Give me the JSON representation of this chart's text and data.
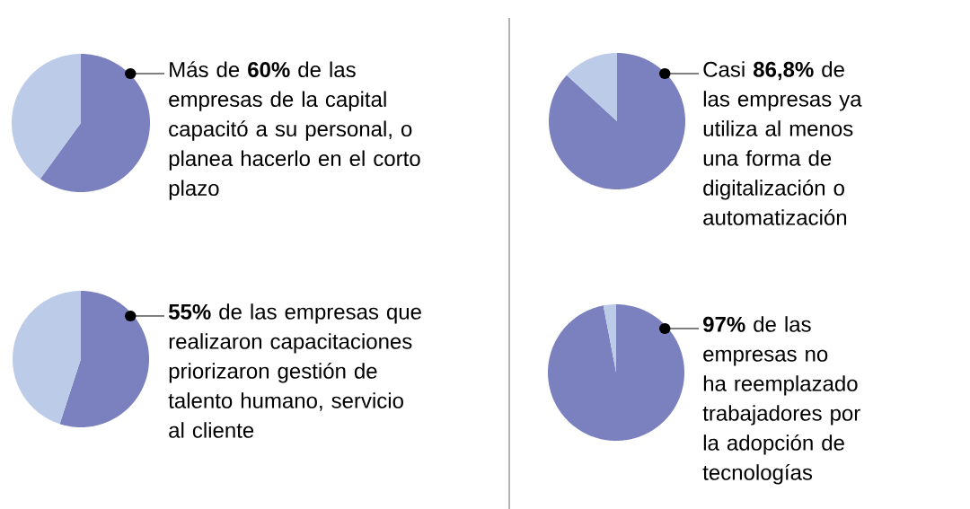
{
  "chart_data": [
    {
      "type": "pie",
      "categories": [
        null,
        null
      ],
      "values": [
        60,
        40
      ],
      "colors": [
        "#7b80bf",
        "#bccbe8"
      ],
      "annotations": [
        "Más de **60%** de las empresas de la capital capacitó a su personal, o planea hacerlo en el corto plazo"
      ]
    },
    {
      "type": "pie",
      "categories": [
        null,
        null
      ],
      "values": [
        86.8,
        13.2
      ],
      "colors": [
        "#7b80bf",
        "#bccbe8"
      ],
      "annotations": [
        "Casi **86,8%** de las empresas ya utiliza al menos una forma de digitalización o automatización"
      ]
    },
    {
      "type": "pie",
      "categories": [
        null,
        null
      ],
      "values": [
        55,
        45
      ],
      "colors": [
        "#7b80bf",
        "#bccbe8"
      ],
      "annotations": [
        "**55%** de las empresas que realizaron capacitaciones priorizaron gestión de talento humano, servicio al cliente"
      ]
    },
    {
      "type": "pie",
      "categories": [
        null,
        null
      ],
      "values": [
        97,
        3
      ],
      "colors": [
        "#7b80bf",
        "#bccbe8"
      ],
      "annotations": [
        "**97%** de las empresas no ha reemplazado trabajadores por la adopción de tecnologías"
      ]
    }
  ]
}
